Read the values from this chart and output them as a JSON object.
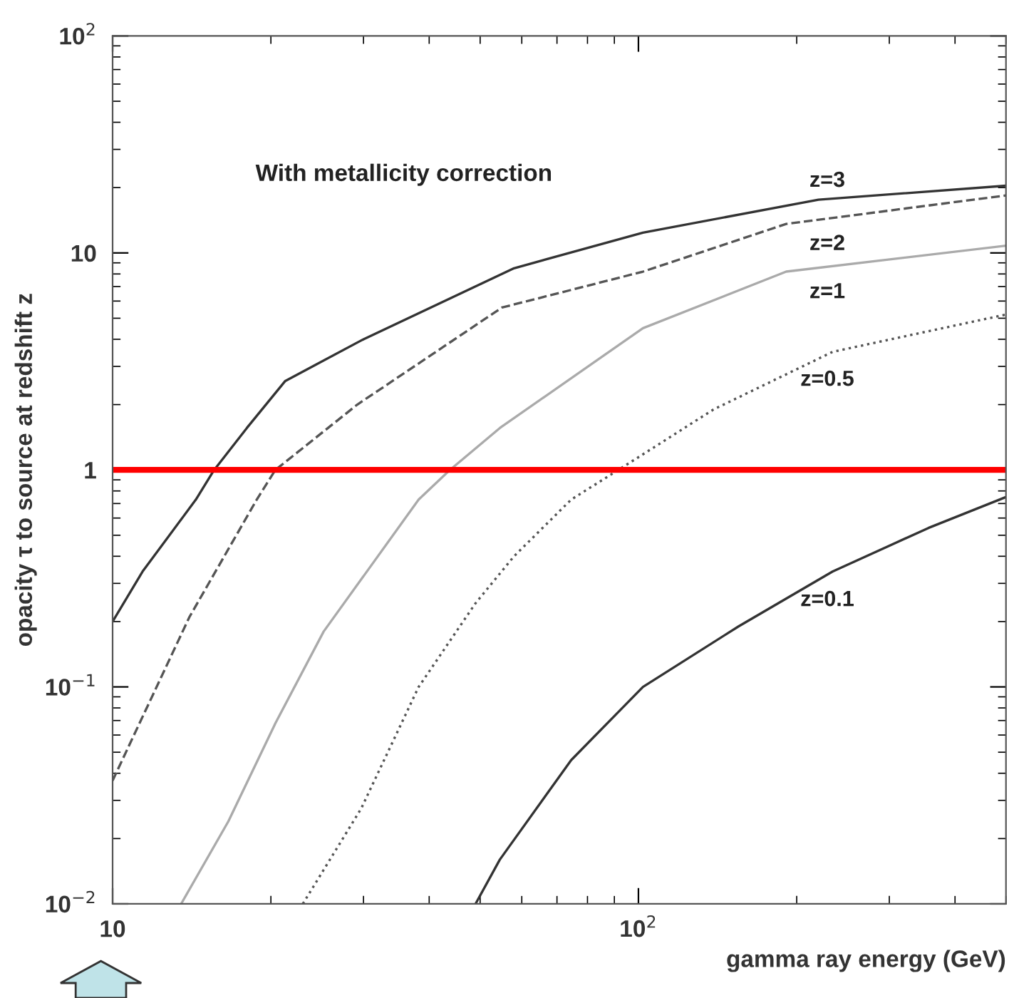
{
  "chart_data": {
    "type": "line",
    "xlabel": "gamma ray energy (GeV)",
    "ylabel": "opacity τ to source at redshift z",
    "log": "xy",
    "xlim": [
      10,
      500
    ],
    "xticks": [
      10,
      {
        "value": 100,
        "label": "10$^{2}$"
      }
    ],
    "ylim": [
      0.01,
      100
    ],
    "yticks": [
      {
        "value": 0.01,
        "label": "10$^{−2}$"
      },
      {
        "value": 0.1,
        "label": "10$^{−1}$"
      },
      1,
      10,
      {
        "value": 100,
        "label": "10$^{2}$"
      }
    ],
    "grid": false,
    "series": [
      {
        "name": "z=3",
        "color": "#333333",
        "line_style": "solid",
        "x": [
          10,
          11.4,
          14.4,
          15.6,
          18,
          21.3,
          30,
          58,
          102,
          220,
          500
        ],
        "values": [
          0.2,
          0.34,
          0.73,
          1.0,
          1.56,
          2.57,
          4.0,
          8.5,
          12.4,
          17.6,
          20.4
        ]
      },
      {
        "name": "z=2",
        "color": "#555555",
        "line_style": "dashed",
        "x": [
          10,
          14,
          18.8,
          20.4,
          29.2,
          55,
          102,
          191,
          500
        ],
        "values": [
          0.037,
          0.21,
          0.73,
          1.0,
          2.0,
          5.6,
          8.2,
          13.6,
          18.4
        ]
      },
      {
        "name": "z=1",
        "color": "#aaaaaa",
        "line_style": "solid",
        "x": [
          13.5,
          16.6,
          20.4,
          25.2,
          38.2,
          43.8,
          54.5,
          102,
          191,
          500
        ],
        "values": [
          0.01,
          0.024,
          0.068,
          0.18,
          0.73,
          1.0,
          1.56,
          4.5,
          8.2,
          10.8
        ]
      },
      {
        "name": "z=0.5",
        "color": "#555555",
        "line_style": "dotted",
        "x": [
          23,
          29.7,
          38.2,
          49,
          58,
          74.5,
          91.6,
          139,
          234,
          500
        ],
        "values": [
          0.01,
          0.0275,
          0.1,
          0.243,
          0.4,
          0.73,
          1.0,
          1.9,
          3.5,
          5.2
        ]
      },
      {
        "name": "z=0.1",
        "color": "#333333",
        "line_style": "solid",
        "x": [
          49,
          54.5,
          74.5,
          102,
          155,
          234,
          356,
          500
        ],
        "values": [
          0.01,
          0.016,
          0.046,
          0.1,
          0.19,
          0.34,
          0.54,
          0.75
        ]
      }
    ],
    "ref_lines": [
      {
        "axis": "y",
        "value": 1,
        "color": "#ff0000"
      }
    ],
    "annotations": [
      "With metallicity correction"
    ]
  }
}
